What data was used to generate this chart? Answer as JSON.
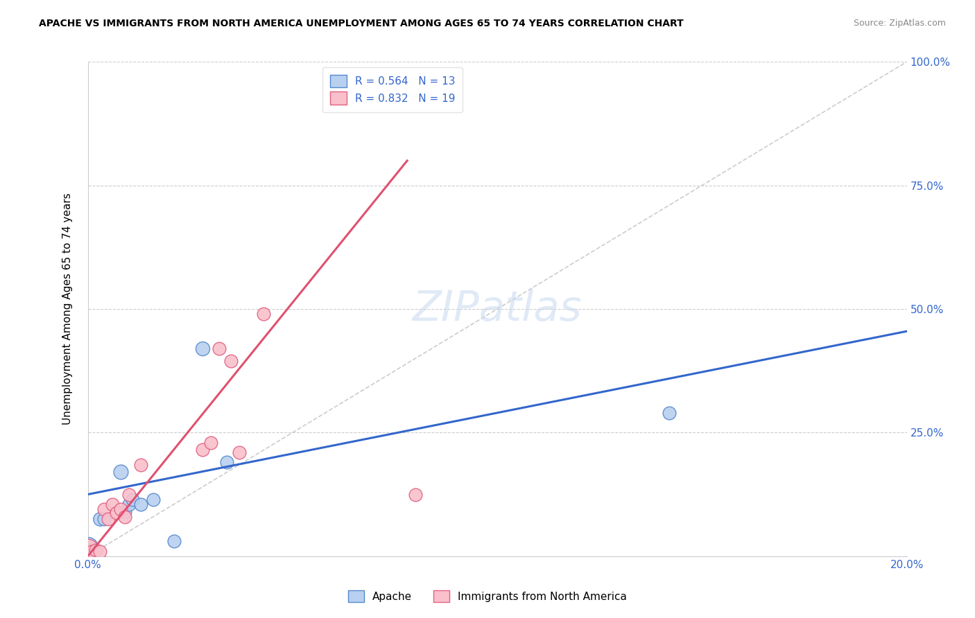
{
  "title": "APACHE VS IMMIGRANTS FROM NORTH AMERICA UNEMPLOYMENT AMONG AGES 65 TO 74 YEARS CORRELATION CHART",
  "source": "Source: ZipAtlas.com",
  "ylabel": "Unemployment Among Ages 65 to 74 years",
  "xlim": [
    0.0,
    0.2
  ],
  "ylim": [
    0.0,
    1.0
  ],
  "xticks": [
    0.0,
    0.04,
    0.08,
    0.12,
    0.16,
    0.2
  ],
  "xtick_labels": [
    "0.0%",
    "",
    "",
    "",
    "",
    "20.0%"
  ],
  "yticks_right": [
    0.0,
    0.25,
    0.5,
    0.75,
    1.0
  ],
  "ytick_labels_right": [
    "",
    "25.0%",
    "50.0%",
    "75.0%",
    "100.0%"
  ],
  "apache_color": "#b8d0f0",
  "apache_edge_color": "#5588cc",
  "immigrants_color": "#f9c0cb",
  "immigrants_edge_color": "#e06080",
  "trend_apache_color": "#3366cc",
  "trend_immigrants_color": "#e05070",
  "reference_line_color": "#cccccc",
  "legend_apache_R": "R = 0.564",
  "legend_apache_N": "N = 13",
  "legend_immigrants_R": "R = 0.832",
  "legend_immigrants_N": "N = 19",
  "watermark": "ZIPatlas",
  "apache_points": [
    [
      0.0,
      0.02,
      28
    ],
    [
      0.003,
      0.075,
      14
    ],
    [
      0.004,
      0.075,
      13
    ],
    [
      0.008,
      0.17,
      16
    ],
    [
      0.009,
      0.09,
      13
    ],
    [
      0.01,
      0.105,
      13
    ],
    [
      0.011,
      0.115,
      13
    ],
    [
      0.013,
      0.105,
      13
    ],
    [
      0.016,
      0.115,
      13
    ],
    [
      0.021,
      0.03,
      13
    ],
    [
      0.028,
      0.42,
      15
    ],
    [
      0.142,
      0.29,
      13
    ],
    [
      0.034,
      0.19,
      13
    ]
  ],
  "immigrants_points": [
    [
      0.0,
      0.015,
      30
    ],
    [
      0.001,
      0.01,
      13
    ],
    [
      0.002,
      0.012,
      13
    ],
    [
      0.003,
      0.01,
      13
    ],
    [
      0.004,
      0.095,
      13
    ],
    [
      0.005,
      0.075,
      13
    ],
    [
      0.006,
      0.105,
      13
    ],
    [
      0.007,
      0.088,
      13
    ],
    [
      0.008,
      0.095,
      13
    ],
    [
      0.009,
      0.08,
      13
    ],
    [
      0.01,
      0.125,
      13
    ],
    [
      0.013,
      0.185,
      13
    ],
    [
      0.028,
      0.215,
      13
    ],
    [
      0.03,
      0.23,
      13
    ],
    [
      0.032,
      0.42,
      13
    ],
    [
      0.035,
      0.395,
      13
    ],
    [
      0.037,
      0.21,
      13
    ],
    [
      0.043,
      0.49,
      13
    ],
    [
      0.08,
      0.125,
      13
    ]
  ],
  "apache_trend_x": [
    0.0,
    0.2
  ],
  "apache_trend_y": [
    0.125,
    0.455
  ],
  "immigrants_trend_x": [
    0.0,
    0.078
  ],
  "immigrants_trend_y": [
    0.0,
    0.8
  ],
  "ref_line_x": [
    0.0,
    0.2
  ],
  "ref_line_y": [
    0.0,
    1.0
  ]
}
